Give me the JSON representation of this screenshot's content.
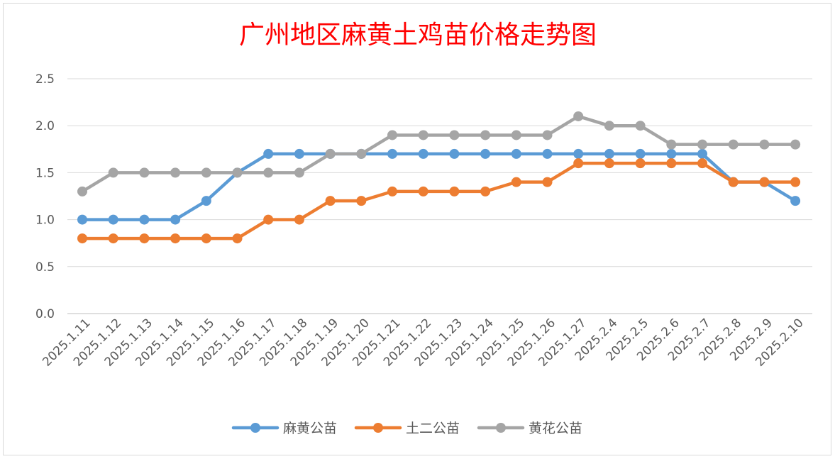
{
  "chart_data": {
    "type": "line",
    "title": "广州地区麻黄土鸡苗价格走势图",
    "categories": [
      "2025.1.11",
      "2025.1.12",
      "2025.1.13",
      "2025.1.14",
      "2025.1.15",
      "2025.1.16",
      "2025.1.17",
      "2025.1.18",
      "2025.1.19",
      "2025.1.20",
      "2025.1.21",
      "2025.1.22",
      "2025.1.23",
      "2025.1.24",
      "2025.1.25",
      "2025.1.26",
      "2025.1.27",
      "2025.2.4",
      "2025.2.5",
      "2025.2.6",
      "2025.2.7",
      "2025.2.8",
      "2025.2.9",
      "2025.2.10"
    ],
    "y_ticks": [
      "0.0",
      "0.5",
      "1.0",
      "1.5",
      "2.0",
      "2.5"
    ],
    "ylim": [
      0,
      2.5
    ],
    "grid": true,
    "legend_position": "bottom",
    "series": [
      {
        "name": "麻黄公苗",
        "color": "#5b9bd5",
        "values": [
          1.0,
          1.0,
          1.0,
          1.0,
          1.2,
          1.5,
          1.7,
          1.7,
          1.7,
          1.7,
          1.7,
          1.7,
          1.7,
          1.7,
          1.7,
          1.7,
          1.7,
          1.7,
          1.7,
          1.7,
          1.7,
          1.4,
          1.4,
          1.2
        ]
      },
      {
        "name": "土二公苗",
        "color": "#ed7d31",
        "values": [
          0.8,
          0.8,
          0.8,
          0.8,
          0.8,
          0.8,
          1.0,
          1.0,
          1.2,
          1.2,
          1.3,
          1.3,
          1.3,
          1.3,
          1.4,
          1.4,
          1.6,
          1.6,
          1.6,
          1.6,
          1.6,
          1.4,
          1.4,
          1.4
        ]
      },
      {
        "name": "黄花公苗",
        "color": "#a5a5a5",
        "values": [
          1.3,
          1.5,
          1.5,
          1.5,
          1.5,
          1.5,
          1.5,
          1.5,
          1.7,
          1.7,
          1.9,
          1.9,
          1.9,
          1.9,
          1.9,
          1.9,
          2.1,
          2.0,
          2.0,
          1.8,
          1.8,
          1.8,
          1.8,
          1.8
        ]
      }
    ]
  }
}
